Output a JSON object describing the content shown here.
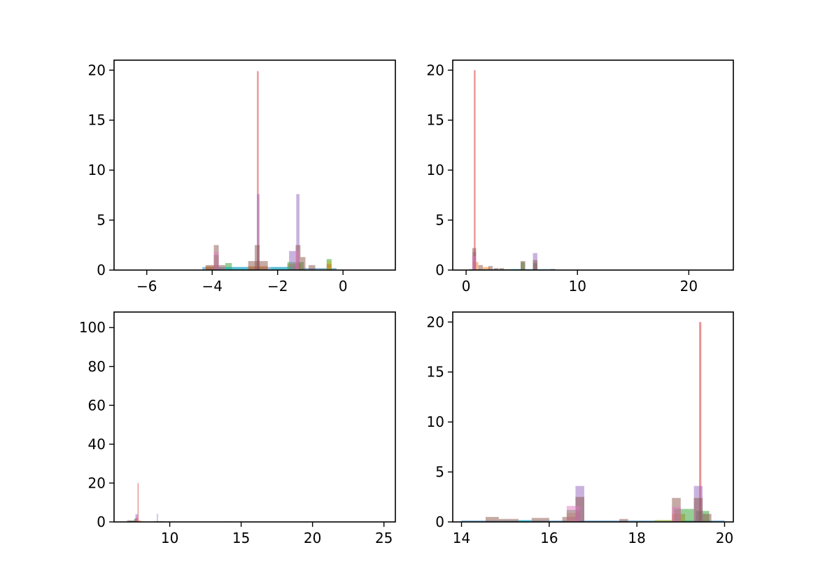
{
  "chart_data": [
    {
      "type": "bar",
      "title": "",
      "xlabel": "",
      "ylabel": "",
      "xlim": [
        -7.0,
        1.6
      ],
      "ylim": [
        0,
        21
      ],
      "x_ticks": [
        -6,
        -4,
        -2,
        0
      ],
      "x_tick_labels": [
        "−6",
        "−4",
        "−2",
        "0"
      ],
      "y_ticks": [
        0,
        5,
        10,
        15,
        20
      ],
      "y_tick_labels": [
        "0",
        "5",
        "10",
        "15",
        "20"
      ],
      "grid": false,
      "series": [
        {
          "color": "#1f77b4",
          "bars": [
            {
              "x0": -4.3,
              "x1": -1.4,
              "y": 0.3
            },
            {
              "x0": -1.4,
              "x1": -0.2,
              "y": 0.2
            }
          ]
        },
        {
          "color": "#ff7f0e",
          "bars": [
            {
              "x0": -4.2,
              "x1": -3.9,
              "y": 0.4
            },
            {
              "x0": -2.9,
              "x1": -2.3,
              "y": 0.4
            },
            {
              "x0": -1.7,
              "x1": -1.3,
              "y": 0.6
            }
          ]
        },
        {
          "color": "#2ca02c",
          "bars": [
            {
              "x0": -3.95,
              "x1": -3.8,
              "y": 1.5
            },
            {
              "x0": -3.6,
              "x1": -3.4,
              "y": 0.7
            },
            {
              "x0": -1.7,
              "x1": -1.2,
              "y": 0.8
            },
            {
              "x0": -0.5,
              "x1": -0.35,
              "y": 1.1
            }
          ]
        },
        {
          "color": "#d62728",
          "bars": [
            {
              "x0": -2.63,
              "x1": -2.58,
              "y": 19.9
            },
            {
              "x0": -0.5,
              "x1": -0.35,
              "y": 0.6
            }
          ]
        },
        {
          "color": "#9467bd",
          "bars": [
            {
              "x0": -2.63,
              "x1": -2.55,
              "y": 7.6
            },
            {
              "x0": -1.43,
              "x1": -1.33,
              "y": 7.6
            },
            {
              "x0": -1.65,
              "x1": -1.45,
              "y": 1.9
            }
          ]
        },
        {
          "color": "#8c564b",
          "bars": [
            {
              "x0": -3.95,
              "x1": -3.8,
              "y": 2.5
            },
            {
              "x0": -2.7,
              "x1": -2.55,
              "y": 2.5
            },
            {
              "x0": -1.45,
              "x1": -1.3,
              "y": 2.5
            },
            {
              "x0": -4.2,
              "x1": -3.6,
              "y": 0.5
            },
            {
              "x0": -2.9,
              "x1": -2.3,
              "y": 0.9
            },
            {
              "x0": -1.3,
              "x1": -1.15,
              "y": 1.3
            },
            {
              "x0": -1.05,
              "x1": -0.85,
              "y": 0.5
            }
          ]
        },
        {
          "color": "#e377c2",
          "bars": [
            {
              "x0": -3.95,
              "x1": -3.8,
              "y": 1.8
            },
            {
              "x0": -1.45,
              "x1": -1.35,
              "y": 2.0
            }
          ]
        },
        {
          "color": "#bcbd22",
          "bars": [
            {
              "x0": -0.5,
              "x1": -0.35,
              "y": 0.9
            }
          ]
        },
        {
          "color": "#17becf",
          "bars": [
            {
              "x0": -3.6,
              "x1": -2.9,
              "y": 0.3
            },
            {
              "x0": -2.2,
              "x1": -1.6,
              "y": 0.3
            }
          ]
        }
      ]
    },
    {
      "type": "bar",
      "title": "",
      "xlabel": "",
      "ylabel": "",
      "xlim": [
        -1.2,
        24.0
      ],
      "ylim": [
        0,
        21
      ],
      "x_ticks": [
        0,
        10,
        20
      ],
      "x_tick_labels": [
        "0",
        "10",
        "20"
      ],
      "y_ticks": [
        0,
        5,
        10,
        15,
        20
      ],
      "y_tick_labels": [
        "0",
        "5",
        "10",
        "15",
        "20"
      ],
      "grid": false,
      "series": [
        {
          "color": "#1f77b4",
          "bars": [
            {
              "x0": 0.3,
              "x1": 8.0,
              "y": 0.1
            }
          ]
        },
        {
          "color": "#ff7f0e",
          "bars": [
            {
              "x0": 0.6,
              "x1": 1.1,
              "y": 0.8
            },
            {
              "x0": 1.5,
              "x1": 2.1,
              "y": 0.3
            }
          ]
        },
        {
          "color": "#2ca02c",
          "bars": [
            {
              "x0": 4.9,
              "x1": 5.3,
              "y": 0.8
            },
            {
              "x0": 6.0,
              "x1": 6.4,
              "y": 0.7
            }
          ]
        },
        {
          "color": "#d62728",
          "bars": [
            {
              "x0": 0.7,
              "x1": 0.85,
              "y": 20.0
            }
          ]
        },
        {
          "color": "#9467bd",
          "bars": [
            {
              "x0": 6.0,
              "x1": 6.4,
              "y": 1.7
            },
            {
              "x0": 0.6,
              "x1": 0.9,
              "y": 1.8
            }
          ]
        },
        {
          "color": "#8c564b",
          "bars": [
            {
              "x0": 0.55,
              "x1": 0.9,
              "y": 2.2
            },
            {
              "x0": 1.1,
              "x1": 1.5,
              "y": 0.5
            },
            {
              "x0": 2.0,
              "x1": 2.4,
              "y": 0.4
            },
            {
              "x0": 2.5,
              "x1": 2.9,
              "y": 0.2
            },
            {
              "x0": 3.0,
              "x1": 3.4,
              "y": 0.2
            },
            {
              "x0": 4.9,
              "x1": 5.3,
              "y": 0.9
            },
            {
              "x0": 6.0,
              "x1": 6.4,
              "y": 1.0
            },
            {
              "x0": 7.6,
              "x1": 8.0,
              "y": 0.1
            }
          ]
        },
        {
          "color": "#e377c2",
          "bars": [
            {
              "x0": 0.55,
              "x1": 0.9,
              "y": 1.4
            }
          ]
        },
        {
          "color": "#bcbd22",
          "bars": [
            {
              "x0": 3.5,
              "x1": 4.0,
              "y": 0.1
            }
          ]
        },
        {
          "color": "#17becf",
          "bars": [
            {
              "x0": 4.0,
              "x1": 4.8,
              "y": 0.1
            }
          ]
        }
      ]
    },
    {
      "type": "bar",
      "title": "",
      "xlabel": "",
      "ylabel": "",
      "xlim": [
        6.1,
        25.8
      ],
      "ylim": [
        0,
        108
      ],
      "x_ticks": [
        10,
        15,
        20,
        25
      ],
      "x_tick_labels": [
        "10",
        "15",
        "20",
        "25"
      ],
      "y_ticks": [
        0,
        20,
        40,
        60,
        80,
        100
      ],
      "y_tick_labels": [
        "0",
        "20",
        "40",
        "60",
        "80",
        "100"
      ],
      "grid": false,
      "series": [
        {
          "color": "#1f77b4",
          "bars": [
            {
              "x0": 7.1,
              "x1": 7.6,
              "y": 0.6
            }
          ]
        },
        {
          "color": "#ff7f0e",
          "bars": [
            {
              "x0": 7.6,
              "x1": 8.0,
              "y": 0.8
            }
          ]
        },
        {
          "color": "#2ca02c",
          "bars": [
            {
              "x0": 7.5,
              "x1": 7.7,
              "y": 1.5
            }
          ]
        },
        {
          "color": "#d62728",
          "bars": [
            {
              "x0": 7.75,
              "x1": 7.82,
              "y": 20.0
            }
          ]
        },
        {
          "color": "#9467bd",
          "bars": [
            {
              "x0": 9.1,
              "x1": 9.17,
              "y": 4.2
            },
            {
              "x0": 7.6,
              "x1": 7.75,
              "y": 4.0
            }
          ]
        },
        {
          "color": "#8c564b",
          "bars": [
            {
              "x0": 7.0,
              "x1": 7.5,
              "y": 0.8
            },
            {
              "x0": 7.55,
              "x1": 7.75,
              "y": 1.8
            },
            {
              "x0": 8.9,
              "x1": 9.6,
              "y": 0.4
            },
            {
              "x0": 14.0,
              "x1": 14.3,
              "y": 0.2
            }
          ]
        },
        {
          "color": "#e377c2",
          "bars": [
            {
              "x0": 7.6,
              "x1": 7.8,
              "y": 3.0
            }
          ]
        },
        {
          "color": "#bcbd22",
          "bars": [
            {
              "x0": 9.6,
              "x1": 10.4,
              "y": 0.2
            }
          ]
        },
        {
          "color": "#17becf",
          "bars": [
            {
              "x0": 10.4,
              "x1": 12.0,
              "y": 0.15
            }
          ]
        }
      ]
    },
    {
      "type": "bar",
      "title": "",
      "xlabel": "",
      "ylabel": "",
      "xlim": [
        13.8,
        20.2
      ],
      "ylim": [
        0,
        21
      ],
      "x_ticks": [
        14,
        16,
        18,
        20
      ],
      "x_tick_labels": [
        "14",
        "16",
        "18",
        "20"
      ],
      "y_ticks": [
        0,
        5,
        10,
        15,
        20
      ],
      "y_tick_labels": [
        "0",
        "5",
        "10",
        "15",
        "20"
      ],
      "grid": false,
      "series": [
        {
          "color": "#1f77b4",
          "bars": [
            {
              "x0": 14.0,
              "x1": 20.0,
              "y": 0.15
            }
          ]
        },
        {
          "color": "#ff7f0e",
          "bars": [
            {
              "x0": 16.4,
              "x1": 16.7,
              "y": 0.9
            },
            {
              "x0": 18.8,
              "x1": 19.1,
              "y": 0.8
            }
          ]
        },
        {
          "color": "#2ca02c",
          "bars": [
            {
              "x0": 16.4,
              "x1": 16.7,
              "y": 1.2
            },
            {
              "x0": 18.85,
              "x1": 19.3,
              "y": 1.3
            },
            {
              "x0": 19.35,
              "x1": 19.65,
              "y": 1.1
            }
          ]
        },
        {
          "color": "#d62728",
          "bars": [
            {
              "x0": 19.42,
              "x1": 19.47,
              "y": 20.0
            }
          ]
        },
        {
          "color": "#9467bd",
          "bars": [
            {
              "x0": 16.6,
              "x1": 16.8,
              "y": 3.6
            },
            {
              "x0": 19.3,
              "x1": 19.5,
              "y": 3.6
            }
          ]
        },
        {
          "color": "#8c564b",
          "bars": [
            {
              "x0": 14.55,
              "x1": 14.85,
              "y": 0.5
            },
            {
              "x0": 14.85,
              "x1": 15.3,
              "y": 0.3
            },
            {
              "x0": 15.6,
              "x1": 16.0,
              "y": 0.4
            },
            {
              "x0": 16.3,
              "x1": 16.6,
              "y": 0.5
            },
            {
              "x0": 16.6,
              "x1": 16.8,
              "y": 2.5
            },
            {
              "x0": 17.6,
              "x1": 17.8,
              "y": 0.3
            },
            {
              "x0": 18.8,
              "x1": 19.0,
              "y": 2.4
            },
            {
              "x0": 19.3,
              "x1": 19.5,
              "y": 2.4
            },
            {
              "x0": 19.5,
              "x1": 19.7,
              "y": 0.8
            }
          ]
        },
        {
          "color": "#e377c2",
          "bars": [
            {
              "x0": 16.4,
              "x1": 16.7,
              "y": 1.6
            },
            {
              "x0": 18.8,
              "x1": 19.0,
              "y": 1.5
            }
          ]
        },
        {
          "color": "#bcbd22",
          "bars": [
            {
              "x0": 18.4,
              "x1": 18.8,
              "y": 0.2
            }
          ]
        },
        {
          "color": "#17becf",
          "bars": [
            {
              "x0": 15.3,
              "x1": 15.6,
              "y": 0.2
            }
          ]
        }
      ]
    }
  ]
}
